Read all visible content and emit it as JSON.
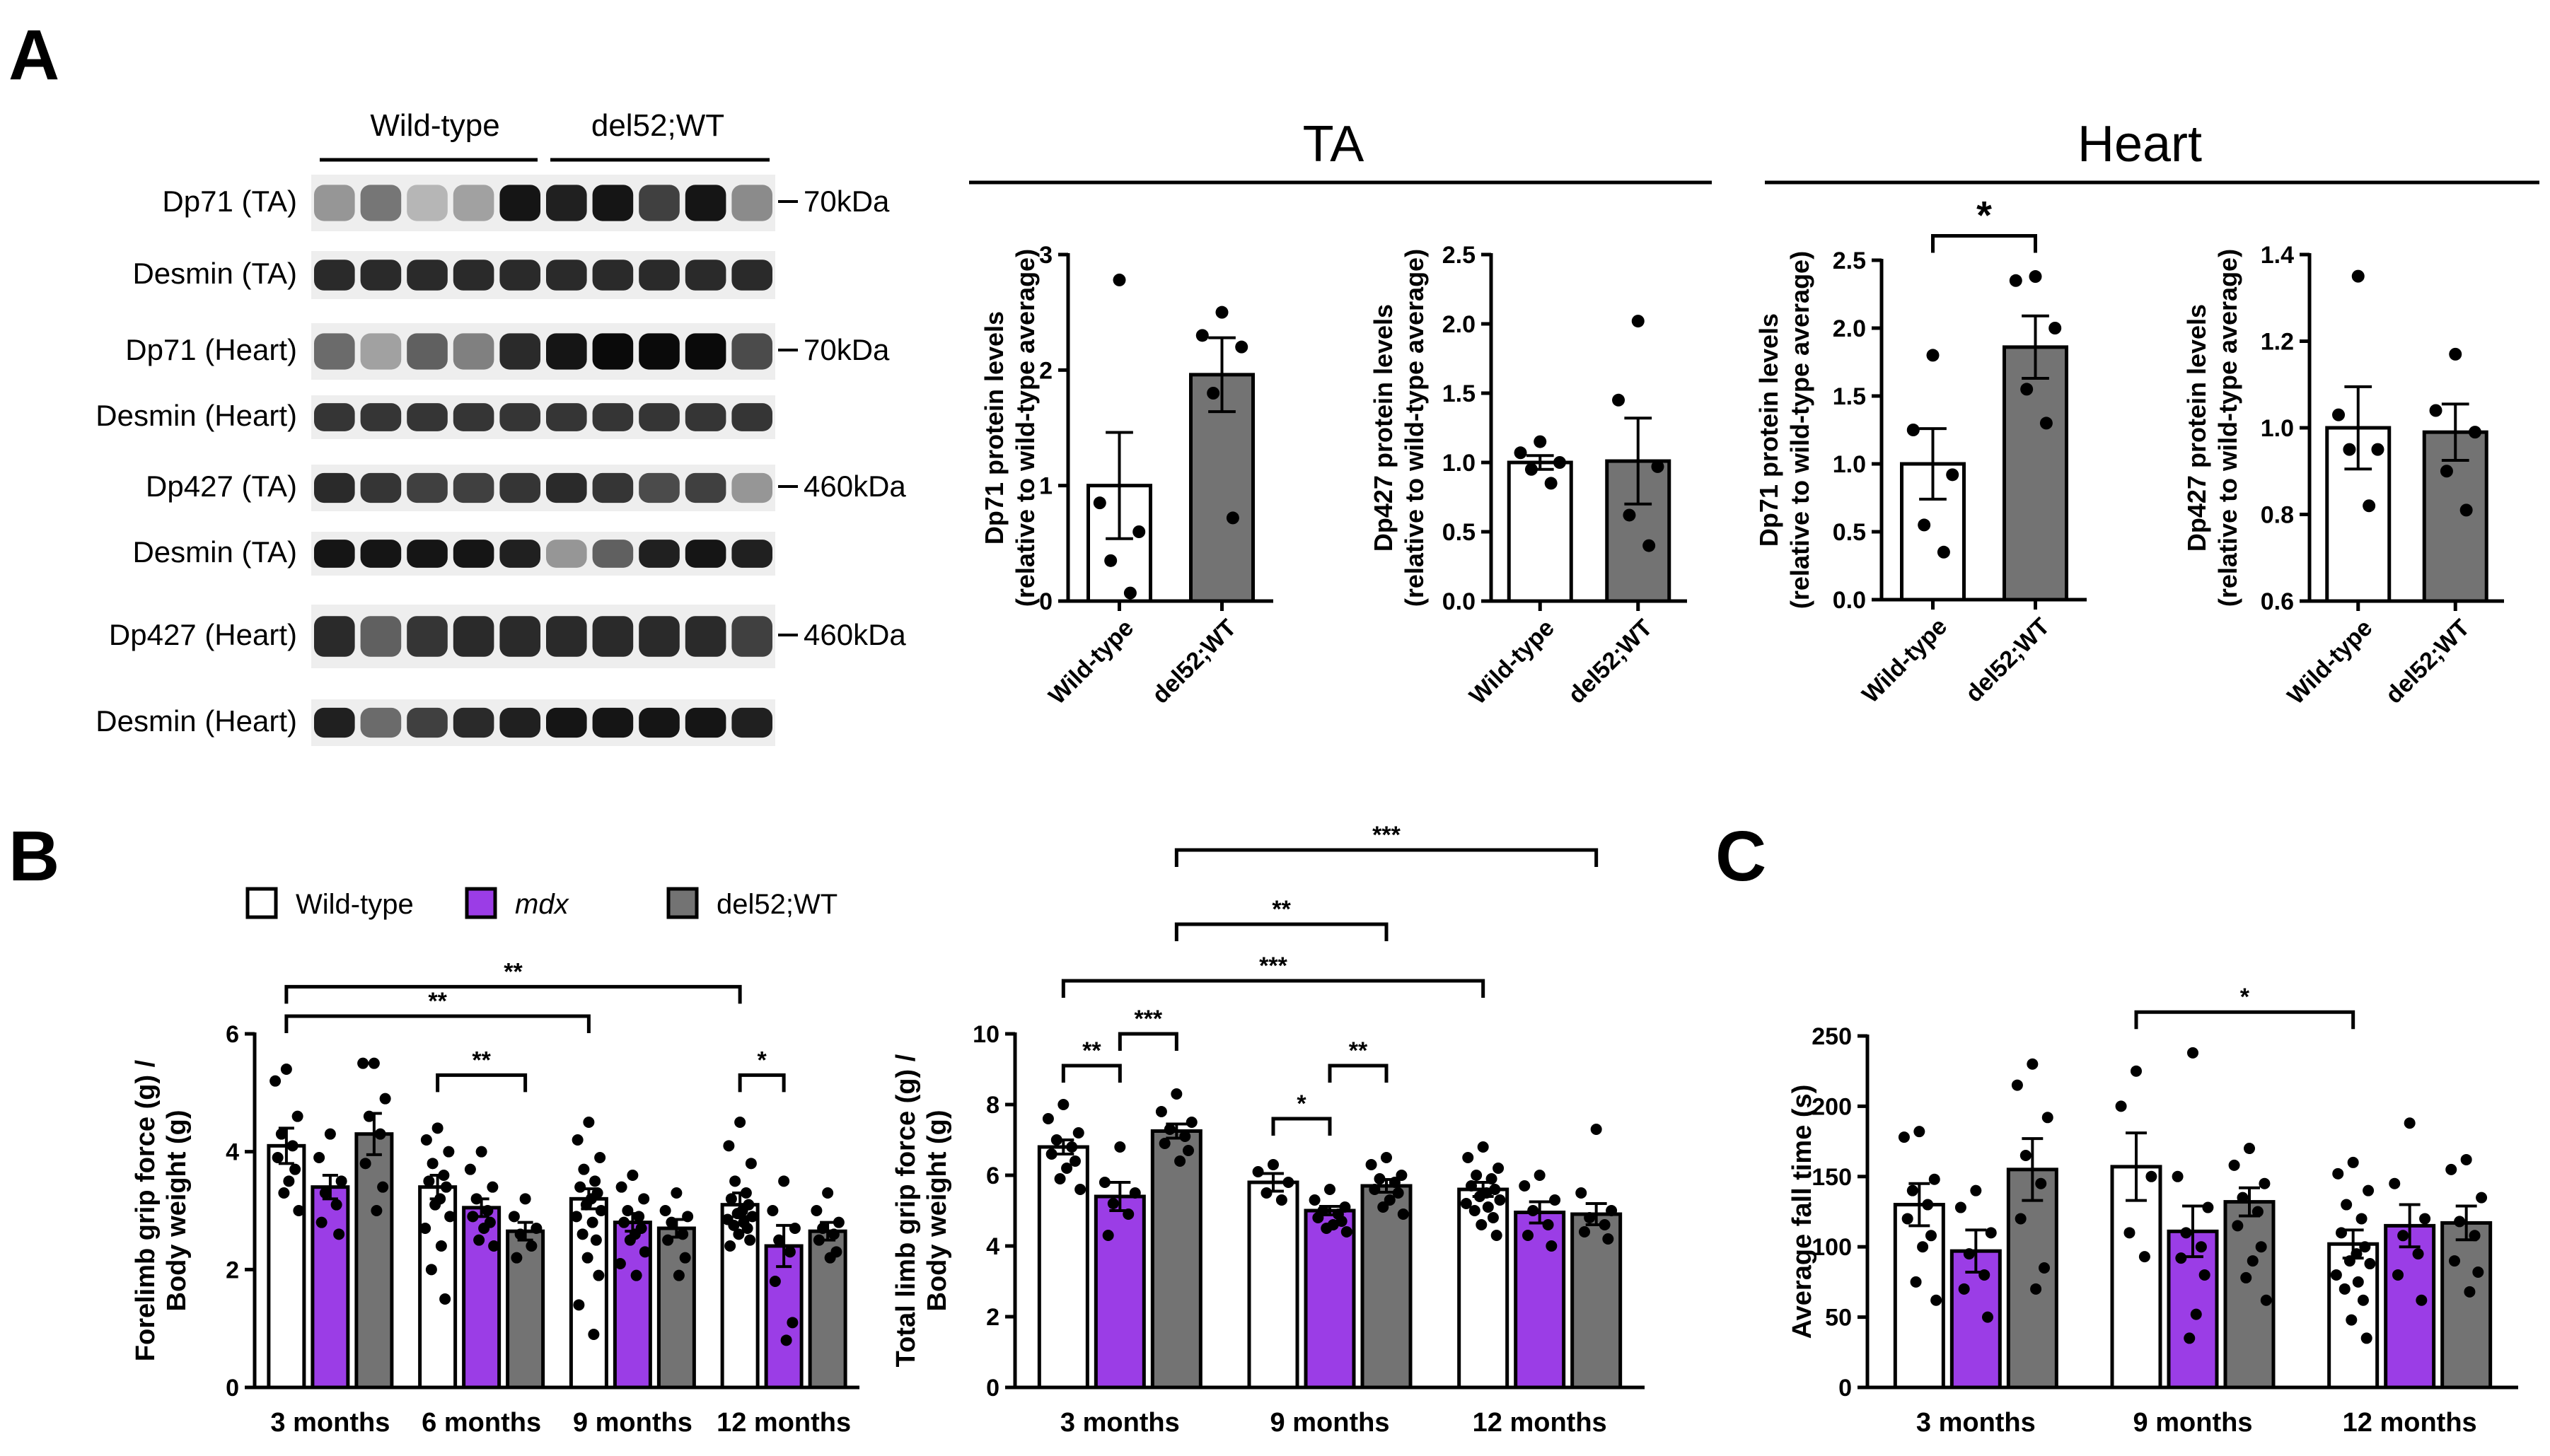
{
  "figure": {
    "colors": {
      "wild_type": "#ffffff",
      "mdx": "#9b3de6",
      "del52": "#737373",
      "ink": "#000000"
    }
  },
  "panel_a": {
    "letter": "A",
    "blot": {
      "group_labels": [
        "Wild-type",
        "del52;WT"
      ],
      "rows": [
        {
          "label": "Dp71 (TA)",
          "marker": "70kDa"
        },
        {
          "label": "Desmin (TA)",
          "marker": ""
        },
        {
          "label": "Dp71 (Heart)",
          "marker": "70kDa"
        },
        {
          "label": "Desmin (Heart)",
          "marker": ""
        },
        {
          "label": "Dp427 (TA)",
          "marker": "460kDa"
        },
        {
          "label": "Desmin (TA)",
          "marker": ""
        },
        {
          "label": "Dp427 (Heart)",
          "marker": "460kDa"
        },
        {
          "label": "Desmin (Heart)",
          "marker": ""
        }
      ]
    },
    "tissue_headers": [
      "TA",
      "Heart"
    ],
    "x_categories": [
      "Wild-type",
      "del52;WT"
    ]
  },
  "panel_b": {
    "letter": "B",
    "legend": [
      {
        "label": "Wild-type",
        "italic": false,
        "color": "#ffffff"
      },
      {
        "label": "mdx",
        "italic": true,
        "color": "#9b3de6"
      },
      {
        "label": "del52;WT",
        "italic": false,
        "color": "#737373"
      }
    ]
  },
  "panel_c": {
    "letter": "C"
  },
  "chart_data": [
    {
      "id": "a-ta-dp71",
      "type": "bar",
      "title": "TA",
      "ylabel": [
        "Dp71 protein levels",
        "(relative to wild-type average)"
      ],
      "categories": [
        "Wild-type",
        "del52;WT"
      ],
      "ylim": [
        0,
        3
      ],
      "yticks": [
        0,
        1,
        2,
        3
      ],
      "tick_labels": [
        "0",
        "1",
        "2",
        "3"
      ],
      "series": [
        {
          "name": "Wild-type",
          "color": "#ffffff",
          "mean": 1.0,
          "sem": 0.46,
          "points": [
            2.78,
            0.85,
            0.6,
            0.35,
            0.07
          ]
        },
        {
          "name": "del52;WT",
          "color": "#737373",
          "mean": 1.96,
          "sem": 0.32,
          "points": [
            2.5,
            2.3,
            2.2,
            1.8,
            0.72
          ]
        }
      ],
      "significance": []
    },
    {
      "id": "a-ta-dp427",
      "type": "bar",
      "title": "TA",
      "ylabel": [
        "Dp427 protein levels",
        "(relative to wild-type average)"
      ],
      "categories": [
        "Wild-type",
        "del52;WT"
      ],
      "ylim": [
        0,
        2.5
      ],
      "yticks": [
        0,
        0.5,
        1,
        1.5,
        2,
        2.5
      ],
      "tick_labels": [
        "0.0",
        "0.5",
        "1.0",
        "1.5",
        "2.0",
        "2.5"
      ],
      "series": [
        {
          "name": "Wild-type",
          "color": "#ffffff",
          "mean": 1.0,
          "sem": 0.05,
          "points": [
            1.15,
            1.07,
            1.0,
            0.95,
            0.85
          ]
        },
        {
          "name": "del52;WT",
          "color": "#737373",
          "mean": 1.01,
          "sem": 0.31,
          "points": [
            2.02,
            1.45,
            0.97,
            0.62,
            0.4
          ]
        }
      ],
      "significance": []
    },
    {
      "id": "a-heart-dp71",
      "type": "bar",
      "title": "Heart",
      "ylabel": [
        "Dp71 protein levels",
        "(relative to wild-type average)"
      ],
      "categories": [
        "Wild-type",
        "del52;WT"
      ],
      "ylim": [
        0,
        2.5
      ],
      "yticks": [
        0,
        0.5,
        1,
        1.5,
        2,
        2.5
      ],
      "tick_labels": [
        "0.0",
        "0.5",
        "1.0",
        "1.5",
        "2.0",
        "2.5"
      ],
      "series": [
        {
          "name": "Wild-type",
          "color": "#ffffff",
          "mean": 1.0,
          "sem": 0.26,
          "points": [
            1.8,
            1.25,
            0.92,
            0.55,
            0.35
          ]
        },
        {
          "name": "del52;WT",
          "color": "#737373",
          "mean": 1.86,
          "sem": 0.23,
          "points": [
            2.38,
            2.35,
            2.0,
            1.55,
            1.3
          ]
        }
      ],
      "significance": [
        {
          "from": 0,
          "to": 1,
          "y": 2.68,
          "label": "*"
        }
      ]
    },
    {
      "id": "a-heart-dp427",
      "type": "bar",
      "title": "Heart",
      "ylabel": [
        "Dp427 protein levels",
        "(relative to wild-type average)"
      ],
      "categories": [
        "Wild-type",
        "del52;WT"
      ],
      "ylim": [
        0.6,
        1.4
      ],
      "yticks": [
        0.6,
        0.8,
        1.0,
        1.2,
        1.4
      ],
      "tick_labels": [
        "0.6",
        "0.8",
        "1.0",
        "1.2",
        "1.4"
      ],
      "series": [
        {
          "name": "Wild-type",
          "color": "#ffffff",
          "mean": 1.0,
          "sem": 0.095,
          "points": [
            1.35,
            1.03,
            0.95,
            0.95,
            0.82
          ]
        },
        {
          "name": "del52;WT",
          "color": "#737373",
          "mean": 0.99,
          "sem": 0.065,
          "points": [
            1.17,
            1.04,
            0.99,
            0.9,
            0.81
          ]
        }
      ],
      "significance": []
    },
    {
      "id": "b-forelimb",
      "type": "bar",
      "ylabel": [
        "Forelimb grip force (g) /",
        "Body weight (g)"
      ],
      "categories": [
        "3 months",
        "6 months",
        "9 months",
        "12 months"
      ],
      "ylim": [
        0,
        6
      ],
      "yticks": [
        0,
        2,
        4,
        6
      ],
      "tick_labels": [
        "0",
        "2",
        "4",
        "6"
      ],
      "series": [
        {
          "name": "Wild-type",
          "color": "#ffffff",
          "means": [
            4.1,
            3.4,
            3.2,
            3.1
          ],
          "sems": [
            0.3,
            0.2,
            0.17,
            0.2
          ],
          "points": [
            [
              5.4,
              5.2,
              4.6,
              4.3,
              4.1,
              3.9,
              3.7,
              3.5,
              3.3,
              3.0
            ],
            [
              4.4,
              4.2,
              4.0,
              3.8,
              3.6,
              3.5,
              3.4,
              3.2,
              3.1,
              2.9,
              2.7,
              2.4,
              2.0,
              1.5
            ],
            [
              4.5,
              4.2,
              3.9,
              3.7,
              3.5,
              3.4,
              3.3,
              3.2,
              3.1,
              3.0,
              2.9,
              2.8,
              2.6,
              2.5,
              2.2,
              1.9,
              1.4,
              0.9
            ],
            [
              4.5,
              4.1,
              3.8,
              3.5,
              3.3,
              3.2,
              3.1,
              3.0,
              2.95,
              2.9,
              2.85,
              2.8,
              2.75,
              2.7,
              2.6,
              2.5,
              2.4
            ]
          ]
        },
        {
          "name": "mdx",
          "color": "#9b3de6",
          "means": [
            3.4,
            3.05,
            2.8,
            2.4
          ],
          "sems": [
            0.2,
            0.15,
            0.15,
            0.35
          ],
          "points": [
            [
              4.3,
              3.9,
              3.5,
              3.3,
              3.1,
              2.8,
              2.6
            ],
            [
              4.0,
              3.7,
              3.4,
              3.2,
              3.0,
              2.9,
              2.8,
              2.7,
              2.5,
              2.4
            ],
            [
              3.6,
              3.4,
              3.2,
              3.0,
              2.9,
              2.8,
              2.7,
              2.6,
              2.5,
              2.3,
              2.1,
              1.9
            ],
            [
              3.5,
              3.0,
              2.7,
              2.5,
              2.3,
              1.8,
              1.1,
              0.8
            ]
          ]
        },
        {
          "name": "del52;WT",
          "color": "#737373",
          "means": [
            4.3,
            2.65,
            2.7,
            2.65
          ],
          "sems": [
            0.35,
            0.15,
            0.15,
            0.15
          ],
          "points": [
            [
              5.5,
              5.5,
              4.9,
              4.6,
              4.3,
              3.8,
              3.4,
              3.0
            ],
            [
              3.2,
              2.9,
              2.7,
              2.6,
              2.4,
              2.2
            ],
            [
              3.3,
              3.0,
              2.9,
              2.8,
              2.6,
              2.5,
              2.2,
              1.9
            ],
            [
              3.3,
              3.0,
              2.8,
              2.7,
              2.6,
              2.5,
              2.3,
              2.2
            ]
          ]
        }
      ],
      "significance": [
        {
          "from": [
            0,
            0
          ],
          "to": [
            3,
            0
          ],
          "y": 6.8,
          "label": "**"
        },
        {
          "from": [
            0,
            0
          ],
          "to": [
            2,
            0
          ],
          "y": 6.3,
          "label": "**"
        },
        {
          "from": [
            1,
            0
          ],
          "to": [
            1,
            2
          ],
          "y": 5.3,
          "label": "**"
        },
        {
          "from": [
            3,
            0
          ],
          "to": [
            3,
            1
          ],
          "y": 5.3,
          "label": "*"
        }
      ]
    },
    {
      "id": "b-total",
      "type": "bar",
      "ylabel": [
        "Total limb grip force (g) /",
        "Body weight (g)"
      ],
      "categories": [
        "3 months",
        "9 months",
        "12 months"
      ],
      "ylim": [
        0,
        10
      ],
      "yticks": [
        0,
        2,
        4,
        6,
        8,
        10
      ],
      "tick_labels": [
        "0",
        "2",
        "4",
        "6",
        "8",
        "10"
      ],
      "series": [
        {
          "name": "Wild-type",
          "color": "#ffffff",
          "means": [
            6.8,
            5.8,
            5.6
          ],
          "sems": [
            0.2,
            0.25,
            0.2
          ],
          "points": [
            [
              8.0,
              7.6,
              7.2,
              7.0,
              6.8,
              6.6,
              6.4,
              6.2,
              5.9,
              5.6
            ],
            [
              6.3,
              6.1,
              5.8,
              5.5,
              5.3
            ],
            [
              6.8,
              6.5,
              6.2,
              6.0,
              5.9,
              5.7,
              5.6,
              5.5,
              5.4,
              5.3,
              5.2,
              5.1,
              5.0,
              4.8,
              4.6,
              4.3
            ]
          ]
        },
        {
          "name": "mdx",
          "color": "#9b3de6",
          "means": [
            5.4,
            5.0,
            4.95
          ],
          "sems": [
            0.4,
            0.12,
            0.3
          ],
          "points": [
            [
              6.8,
              5.8,
              5.5,
              5.2,
              4.9,
              4.3
            ],
            [
              5.6,
              5.3,
              5.1,
              5.0,
              4.9,
              4.8,
              4.7,
              4.6,
              4.5,
              4.4
            ],
            [
              6.0,
              5.7,
              5.3,
              5.0,
              4.6,
              4.3,
              4.0
            ]
          ]
        },
        {
          "name": "del52;WT",
          "color": "#737373",
          "means": [
            7.25,
            5.7,
            4.9
          ],
          "sems": [
            0.2,
            0.18,
            0.3
          ],
          "points": [
            [
              8.3,
              7.8,
              7.5,
              7.3,
              7.1,
              6.9,
              6.7,
              6.4
            ],
            [
              6.5,
              6.3,
              6.0,
              5.9,
              5.8,
              5.6,
              5.5,
              5.3,
              5.1,
              4.9
            ],
            [
              7.3,
              5.5,
              5.0,
              4.8,
              4.6,
              4.4,
              4.2
            ]
          ]
        }
      ],
      "significance": [
        {
          "from": [
            0,
            2
          ],
          "to": [
            2,
            2
          ],
          "y": 15.2,
          "label": "***"
        },
        {
          "from": [
            0,
            2
          ],
          "to": [
            1,
            2
          ],
          "y": 13.1,
          "label": "**"
        },
        {
          "from": [
            0,
            0
          ],
          "to": [
            2,
            0
          ],
          "y": 11.5,
          "label": "***"
        },
        {
          "from": [
            0,
            0
          ],
          "to": [
            0,
            1
          ],
          "y": 9.1,
          "label": "**"
        },
        {
          "from": [
            0,
            1
          ],
          "to": [
            0,
            2
          ],
          "y": 10.0,
          "label": "***"
        },
        {
          "from": [
            1,
            0
          ],
          "to": [
            1,
            1
          ],
          "y": 7.6,
          "label": "*"
        },
        {
          "from": [
            1,
            1
          ],
          "to": [
            1,
            2
          ],
          "y": 9.1,
          "label": "**"
        }
      ]
    },
    {
      "id": "c-fall",
      "type": "bar",
      "ylabel": [
        "Average fall time (s)"
      ],
      "categories": [
        "3 months",
        "9 months",
        "12 months"
      ],
      "ylim": [
        0,
        250
      ],
      "yticks": [
        0,
        50,
        100,
        150,
        200,
        250
      ],
      "tick_labels": [
        "0",
        "50",
        "100",
        "150",
        "200",
        "250"
      ],
      "series": [
        {
          "name": "Wild-type",
          "color": "#ffffff",
          "means": [
            130,
            157,
            102
          ],
          "sems": [
            15,
            24,
            10
          ],
          "points": [
            [
              182,
              178,
              148,
              140,
              130,
              120,
              108,
              100,
              75,
              62
            ],
            [
              225,
              200,
              150,
              110,
              93
            ],
            [
              160,
              152,
              140,
              130,
              120,
              110,
              100,
              95,
              90,
              88,
              80,
              75,
              70,
              62,
              48,
              35
            ]
          ]
        },
        {
          "name": "mdx",
          "color": "#9b3de6",
          "means": [
            97,
            111,
            115
          ],
          "sems": [
            15,
            18,
            15
          ],
          "points": [
            [
              140,
              128,
              110,
              95,
              80,
              70,
              50
            ],
            [
              238,
              150,
              128,
              110,
              100,
              92,
              80,
              52,
              35
            ],
            [
              188,
              145,
              120,
              108,
              95,
              80,
              62
            ]
          ]
        },
        {
          "name": "del52;WT",
          "color": "#737373",
          "means": [
            155,
            132,
            117
          ],
          "sems": [
            22,
            10,
            12
          ],
          "points": [
            [
              230,
              215,
              192,
              165,
              145,
              120,
              85,
              70
            ],
            [
              170,
              158,
              145,
              135,
              125,
              115,
              100,
              90,
              78,
              62
            ],
            [
              162,
              155,
              135,
              118,
              108,
              90,
              82,
              68
            ]
          ]
        }
      ],
      "significance": [
        {
          "from": [
            1,
            0
          ],
          "to": [
            2,
            0
          ],
          "y": 267,
          "label": "*"
        }
      ]
    }
  ]
}
